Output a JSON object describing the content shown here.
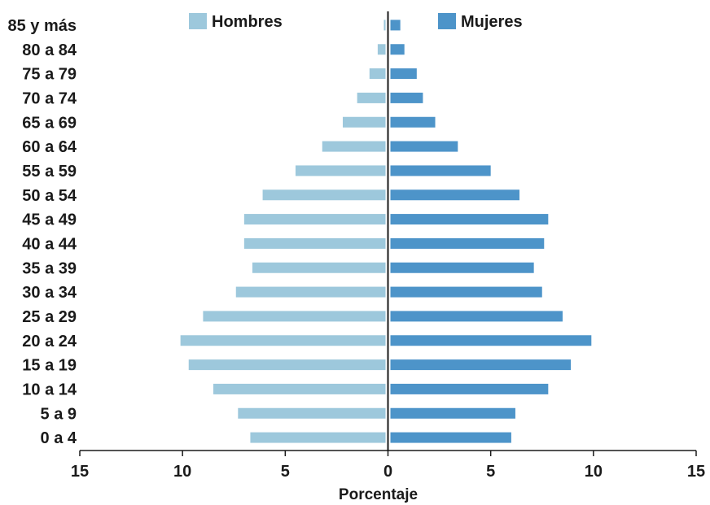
{
  "chart_data": {
    "type": "bar",
    "orientation": "horizontal-population-pyramid",
    "categories": [
      "0 a 4",
      "5 a 9",
      "10 a 14",
      "15 a 19",
      "20 a 24",
      "25 a 29",
      "30 a 34",
      "35 a 39",
      "40 a 44",
      "45 a 49",
      "50 a 54",
      "55 a 59",
      "60 a 64",
      "65 a 69",
      "70 a 74",
      "75 a 79",
      "80 a 84",
      "85 y más"
    ],
    "series": [
      {
        "name": "Hombres",
        "color": "#9dc8dc",
        "side": "left",
        "values": [
          6.7,
          7.3,
          8.5,
          9.7,
          10.1,
          9.0,
          7.4,
          6.6,
          7.0,
          7.0,
          6.1,
          4.5,
          3.2,
          2.2,
          1.5,
          0.9,
          0.5,
          0.2
        ]
      },
      {
        "name": "Mujeres",
        "color": "#4d94c9",
        "side": "right",
        "values": [
          6.0,
          6.2,
          7.8,
          8.9,
          9.9,
          8.5,
          7.5,
          7.1,
          7.6,
          7.8,
          6.4,
          5.0,
          3.4,
          2.3,
          1.7,
          1.4,
          0.8,
          0.6
        ]
      }
    ],
    "xlabel": "Porcentaje",
    "xlim": [
      -15,
      15
    ],
    "xticks": [
      -15,
      -10,
      -5,
      0,
      5,
      10,
      15
    ],
    "xtick_labels": [
      "15",
      "10",
      "5",
      "0",
      "5",
      "10",
      "15"
    ],
    "legend_position": "top",
    "grid": false
  }
}
